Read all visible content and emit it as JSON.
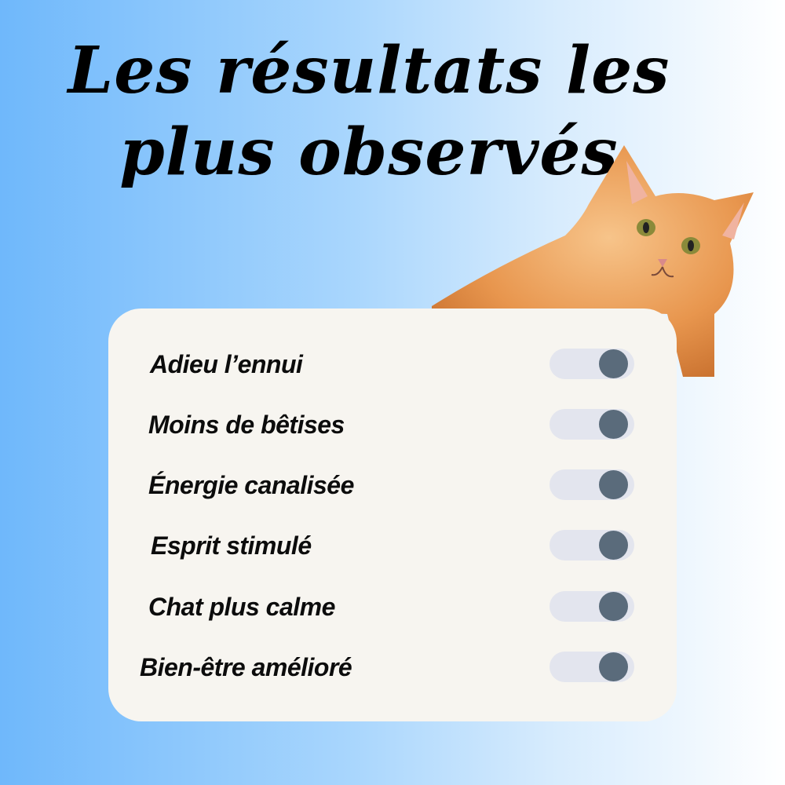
{
  "title": {
    "line1": "Les résultats les",
    "line2": "plus observés"
  },
  "items": [
    {
      "label": "Adieu l’ennui",
      "on": true
    },
    {
      "label": "Moins de bêtises",
      "on": true
    },
    {
      "label": "Énergie canalisée",
      "on": true
    },
    {
      "label": "Esprit stimulé",
      "on": true
    },
    {
      "label": "Chat plus calme",
      "on": true
    },
    {
      "label": "Bien-être amélioré",
      "on": true
    }
  ],
  "colors": {
    "toggle_track": "#e3e5ee",
    "toggle_knob": "#5a6b7b",
    "card": "#f7f5f0",
    "gradient_start": "#6fb8fb",
    "gradient_end": "#ffffff"
  },
  "image": {
    "icon": "orange-cat-photo"
  }
}
